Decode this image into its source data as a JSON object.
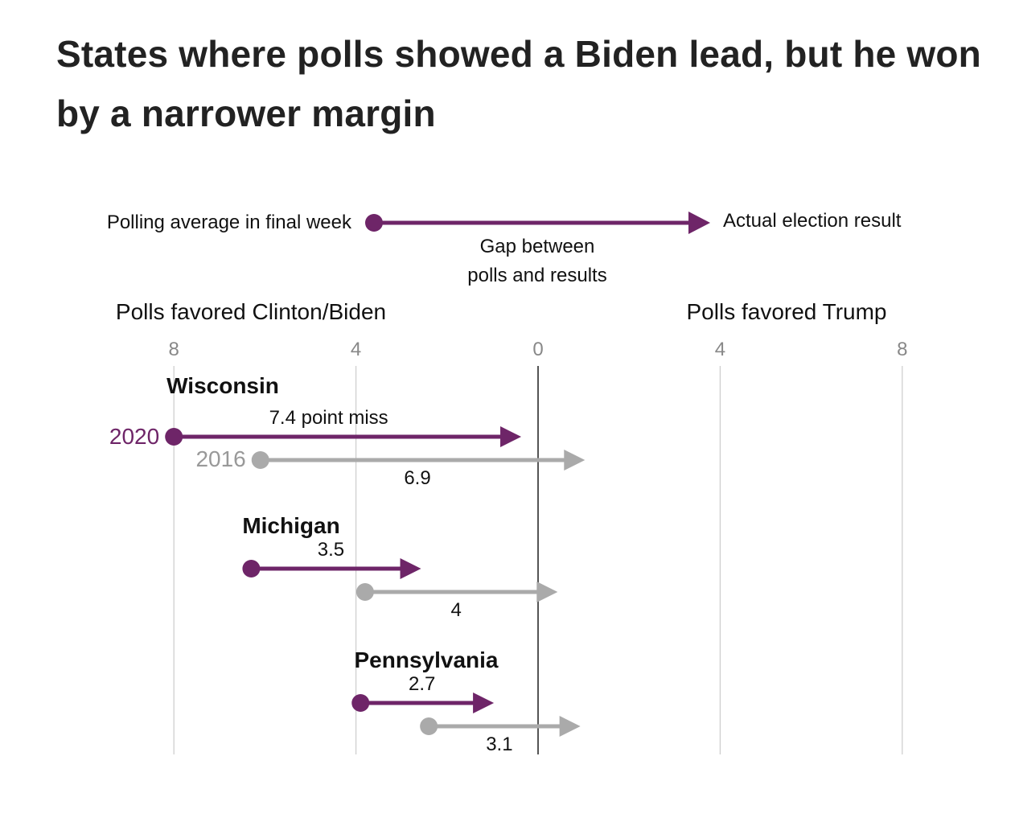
{
  "title": "States where polls showed a Biden lead, but he won by a narrower margin",
  "legend": {
    "start_label": "Polling average in final week",
    "end_label": "Actual election result",
    "gap_label_line1": "Gap between",
    "gap_label_line2": "polls and results"
  },
  "axis": {
    "left_label": "Polls favored Clinton/Biden",
    "right_label": "Polls favored Trump"
  },
  "colors": {
    "y2020": "#6e2568",
    "y2016": "#aaaaaa",
    "grid": "#cccccc",
    "zero": "#555555",
    "ticks": "#888888"
  },
  "chart_data": {
    "type": "arrow-dot",
    "title": "States where polls showed a Biden lead, but he won by a narrower margin",
    "x_ticks": [
      {
        "value": -8,
        "label": "8"
      },
      {
        "value": -4,
        "label": "4"
      },
      {
        "value": 0,
        "label": "0"
      },
      {
        "value": 4,
        "label": "4"
      },
      {
        "value": 8,
        "label": "8"
      }
    ],
    "xlim": [
      -8,
      8
    ],
    "series_labels": {
      "y2020": "2020",
      "y2016": "2016"
    },
    "states": [
      {
        "name": "Wisconsin",
        "rows": [
          {
            "year": "2020",
            "poll": -8.0,
            "result": -0.6,
            "gap_label": "7.4 point miss"
          },
          {
            "year": "2016",
            "poll": -6.1,
            "result": 0.8,
            "gap_label": "6.9"
          }
        ]
      },
      {
        "name": "Michigan",
        "rows": [
          {
            "year": "2020",
            "poll": -6.3,
            "result": -2.8,
            "gap_label": "3.5"
          },
          {
            "year": "2016",
            "poll": -3.8,
            "result": 0.2,
            "gap_label": "4"
          }
        ]
      },
      {
        "name": "Pennsylvania",
        "rows": [
          {
            "year": "2020",
            "poll": -3.9,
            "result": -1.2,
            "gap_label": "2.7"
          },
          {
            "year": "2016",
            "poll": -2.4,
            "result": 0.7,
            "gap_label": "3.1"
          }
        ]
      }
    ]
  }
}
